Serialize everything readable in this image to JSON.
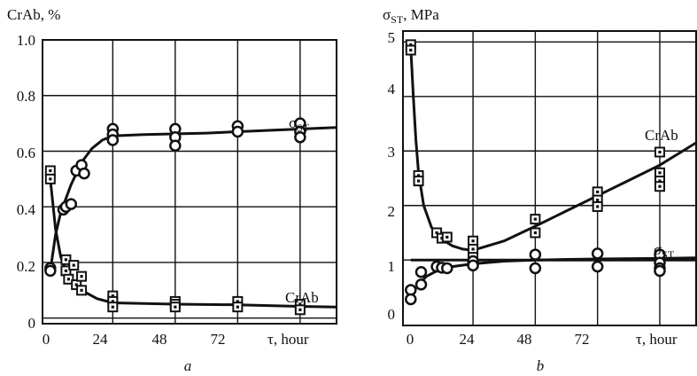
{
  "chart_data": [
    {
      "type": "scatter",
      "panel_label": "a",
      "ylabel": "CrAb, %",
      "xlabel": "τ, hour",
      "xlim": [
        -3,
        110
      ],
      "ylim": [
        -0.02,
        1.0
      ],
      "x_ticks": [
        "0",
        "24",
        "48",
        "72"
      ],
      "y_ticks": [
        "0",
        "0.2",
        "0.4",
        "0.6",
        "0.8",
        "1.0"
      ],
      "grid": true,
      "series": [
        {
          "name": "σST",
          "marker": "circle",
          "points": [
            [
              0,
              0.18
            ],
            [
              0,
              0.17
            ],
            [
              5,
              0.39
            ],
            [
              6,
              0.4
            ],
            [
              8,
              0.41
            ],
            [
              10,
              0.53
            ],
            [
              12,
              0.55
            ],
            [
              13,
              0.52
            ],
            [
              24,
              0.68
            ],
            [
              24,
              0.66
            ],
            [
              24,
              0.64
            ],
            [
              48,
              0.68
            ],
            [
              48,
              0.65
            ],
            [
              48,
              0.62
            ],
            [
              72,
              0.69
            ],
            [
              72,
              0.67
            ],
            [
              96,
              0.7
            ],
            [
              96,
              0.67
            ],
            [
              96,
              0.65
            ]
          ],
          "curve": [
            [
              0,
              0.17
            ],
            [
              2,
              0.3
            ],
            [
              4,
              0.38
            ],
            [
              8,
              0.48
            ],
            [
              12,
              0.56
            ],
            [
              16,
              0.61
            ],
            [
              20,
              0.64
            ],
            [
              24,
              0.655
            ],
            [
              36,
              0.66
            ],
            [
              60,
              0.665
            ],
            [
              84,
              0.675
            ],
            [
              110,
              0.685
            ]
          ]
        },
        {
          "name": "CrAb",
          "marker": "square",
          "points": [
            [
              0,
              0.53
            ],
            [
              0,
              0.5
            ],
            [
              6,
              0.21
            ],
            [
              6,
              0.17
            ],
            [
              7,
              0.14
            ],
            [
              9,
              0.19
            ],
            [
              10,
              0.12
            ],
            [
              12,
              0.15
            ],
            [
              12,
              0.1
            ],
            [
              24,
              0.08
            ],
            [
              24,
              0.06
            ],
            [
              24,
              0.04
            ],
            [
              48,
              0.06
            ],
            [
              48,
              0.05
            ],
            [
              48,
              0.04
            ],
            [
              72,
              0.06
            ],
            [
              72,
              0.04
            ],
            [
              96,
              0.05
            ],
            [
              96,
              0.03
            ]
          ],
          "curve": [
            [
              0,
              0.5
            ],
            [
              2,
              0.32
            ],
            [
              4,
              0.22
            ],
            [
              6,
              0.17
            ],
            [
              10,
              0.12
            ],
            [
              14,
              0.09
            ],
            [
              18,
              0.07
            ],
            [
              24,
              0.055
            ],
            [
              48,
              0.05
            ],
            [
              72,
              0.048
            ],
            [
              96,
              0.042
            ],
            [
              110,
              0.04
            ]
          ]
        }
      ]
    },
    {
      "type": "scatter",
      "panel_label": "b",
      "ylabel": "σST, MPa",
      "xlabel": "τ, hour",
      "xlim": [
        -3,
        110
      ],
      "ylim": [
        -0.2,
        5.2
      ],
      "x_ticks": [
        "0",
        "24",
        "48",
        "72"
      ],
      "y_ticks": [
        "0",
        "1",
        "2",
        "3",
        "4",
        "5"
      ],
      "grid": true,
      "series": [
        {
          "name": "CrAb",
          "marker": "square",
          "points": [
            [
              0,
              4.95
            ],
            [
              0,
              4.85
            ],
            [
              3,
              2.55
            ],
            [
              3,
              2.45
            ],
            [
              10,
              1.5
            ],
            [
              12,
              1.4
            ],
            [
              14,
              1.42
            ],
            [
              24,
              1.35
            ],
            [
              24,
              1.2
            ],
            [
              24,
              1.05
            ],
            [
              48,
              1.75
            ],
            [
              48,
              1.5
            ],
            [
              72,
              2.25
            ],
            [
              72,
              2.1
            ],
            [
              72,
              1.98
            ],
            [
              96,
              2.98
            ],
            [
              96,
              2.6
            ],
            [
              96,
              2.45
            ],
            [
              96,
              2.35
            ]
          ],
          "curve": [
            [
              0,
              4.9
            ],
            [
              1,
              4.0
            ],
            [
              2,
              3.2
            ],
            [
              3,
              2.6
            ],
            [
              5,
              2.0
            ],
            [
              8,
              1.6
            ],
            [
              12,
              1.38
            ],
            [
              16,
              1.26
            ],
            [
              20,
              1.2
            ],
            [
              24,
              1.18
            ],
            [
              36,
              1.35
            ],
            [
              48,
              1.62
            ],
            [
              60,
              1.9
            ],
            [
              72,
              2.18
            ],
            [
              84,
              2.46
            ],
            [
              96,
              2.74
            ],
            [
              110,
              3.15
            ]
          ]
        },
        {
          "name": "σST",
          "marker": "circle",
          "points": [
            [
              0,
              0.45
            ],
            [
              0,
              0.28
            ],
            [
              4,
              0.78
            ],
            [
              4,
              0.55
            ],
            [
              10,
              0.88
            ],
            [
              12,
              0.86
            ],
            [
              14,
              0.85
            ],
            [
              24,
              0.98
            ],
            [
              24,
              0.9
            ],
            [
              48,
              1.1
            ],
            [
              48,
              0.85
            ],
            [
              72,
              1.12
            ],
            [
              72,
              0.88
            ],
            [
              96,
              1.1
            ],
            [
              96,
              0.95
            ],
            [
              96,
              0.85
            ],
            [
              96,
              0.8
            ]
          ],
          "curve": [
            [
              0,
              0.35
            ],
            [
              3,
              0.55
            ],
            [
              6,
              0.7
            ],
            [
              10,
              0.8
            ],
            [
              16,
              0.88
            ],
            [
              24,
              0.93
            ],
            [
              36,
              0.98
            ],
            [
              48,
              1.0
            ],
            [
              72,
              1.02
            ],
            [
              96,
              1.03
            ],
            [
              110,
              1.04
            ]
          ]
        },
        {
          "name": "",
          "marker": "none",
          "points": [],
          "curve": [
            [
              0,
              1.0
            ],
            [
              110,
              1.0
            ]
          ]
        }
      ]
    }
  ]
}
